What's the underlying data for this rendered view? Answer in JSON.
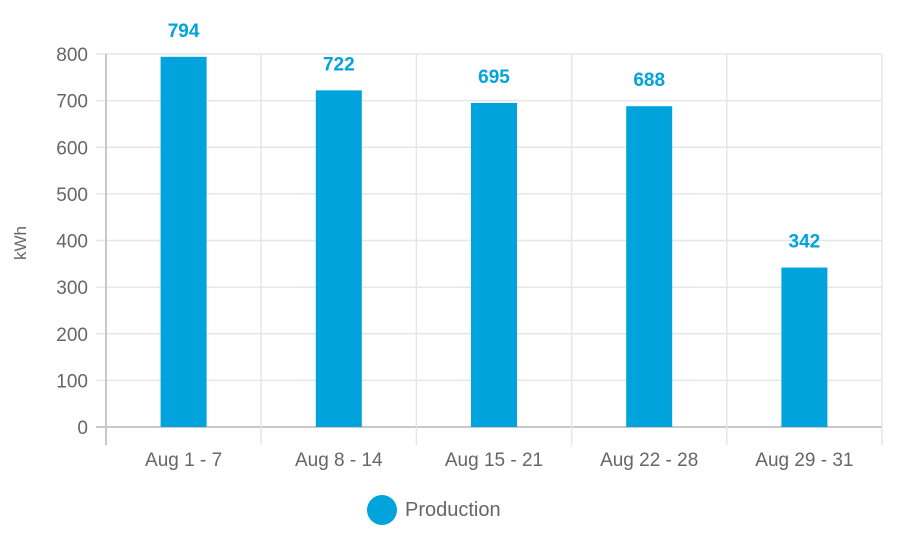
{
  "chart_data": {
    "type": "bar",
    "title": "",
    "xlabel": "",
    "ylabel": "kWh",
    "ylim": [
      0,
      800
    ],
    "yticks": [
      0,
      100,
      200,
      300,
      400,
      500,
      600,
      700,
      800
    ],
    "grid": true,
    "legend_position": "bottom",
    "categories": [
      "Aug 1 - 7",
      "Aug 8 - 14",
      "Aug 15 - 21",
      "Aug 22 - 28",
      "Aug 29 - 31"
    ],
    "series": [
      {
        "name": "Production",
        "color": "#00a3dc",
        "values": [
          794,
          722,
          695,
          688,
          342
        ]
      }
    ],
    "data_labels": [
      "794",
      "722",
      "695",
      "688",
      "342"
    ]
  },
  "axis": {
    "ylabel": "kWh"
  },
  "legend": {
    "label": "Production",
    "color": "#00a3dc"
  }
}
